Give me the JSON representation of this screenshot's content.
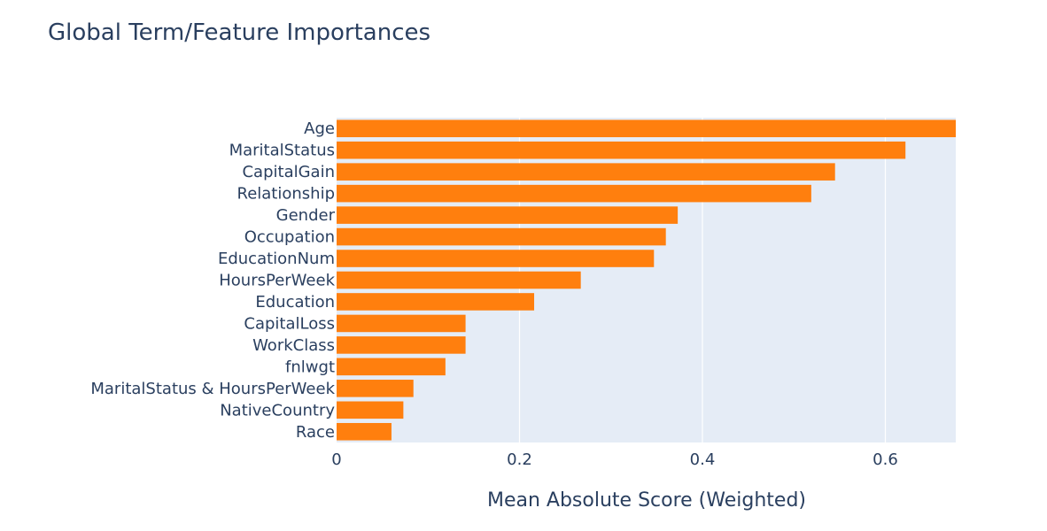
{
  "chart_data": {
    "type": "bar",
    "orientation": "horizontal",
    "title": "Global Term/Feature Importances",
    "xlabel": "Mean Absolute Score (Weighted)",
    "ylabel": "",
    "xlim": [
      0,
      0.677
    ],
    "xticks": [
      0,
      0.2,
      0.4,
      0.6
    ],
    "xtick_labels": [
      "0",
      "0.2",
      "0.4",
      "0.6"
    ],
    "grid": true,
    "bar_color": "#ff7f0e",
    "plot_background": "#e5ecf6",
    "text_color": "#2a3f5f",
    "categories": [
      "Age",
      "MaritalStatus",
      "CapitalGain",
      "Relationship",
      "Gender",
      "Occupation",
      "EducationNum",
      "HoursPerWeek",
      "Education",
      "CapitalLoss",
      "WorkClass",
      "fnlwgt",
      "MaritalStatus & HoursPerWeek",
      "NativeCountry",
      "Race"
    ],
    "values": [
      0.677,
      0.622,
      0.545,
      0.519,
      0.373,
      0.36,
      0.347,
      0.267,
      0.216,
      0.141,
      0.141,
      0.119,
      0.084,
      0.073,
      0.06
    ]
  }
}
